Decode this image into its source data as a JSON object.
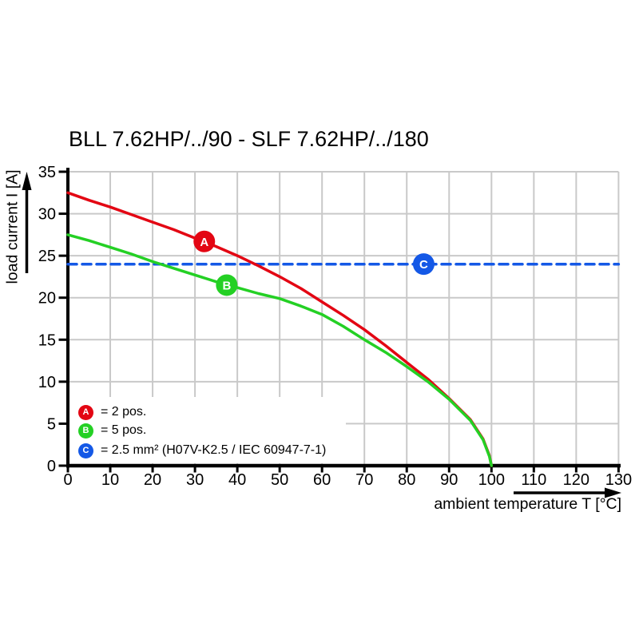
{
  "page": {
    "background": "#ffffff"
  },
  "chart_data": {
    "type": "line",
    "title": "BLL 7.62HP/../90 - SLF 7.62HP/../180",
    "x_axis": {
      "label": "ambient temperature T [°C]",
      "range": [
        0,
        130
      ],
      "ticks": [
        0,
        10,
        20,
        30,
        40,
        50,
        60,
        70,
        80,
        90,
        100,
        110,
        120,
        130
      ]
    },
    "y_axis": {
      "label": "load current I [A]",
      "range": [
        0,
        35
      ],
      "ticks": [
        0,
        5,
        10,
        15,
        20,
        25,
        30,
        35
      ]
    },
    "grid": true,
    "legend_position": "inside-bottom-left",
    "colors": {
      "axis": "#000000",
      "grid": "#c9c9c9",
      "red": "#e30613",
      "green": "#24d024",
      "blue": "#1458e6"
    },
    "series": [
      {
        "name": "A",
        "legend_label": "= 2 pos.",
        "color": "#e30613",
        "line_style": "solid",
        "points": [
          [
            0,
            32.5
          ],
          [
            5,
            31.6
          ],
          [
            10,
            30.8
          ],
          [
            15,
            29.9
          ],
          [
            20,
            29.0
          ],
          [
            25,
            28.1
          ],
          [
            30,
            27.1
          ],
          [
            35,
            26.1
          ],
          [
            40,
            25.0
          ],
          [
            45,
            23.8
          ],
          [
            50,
            22.5
          ],
          [
            55,
            21.1
          ],
          [
            60,
            19.5
          ],
          [
            65,
            17.9
          ],
          [
            70,
            16.2
          ],
          [
            75,
            14.3
          ],
          [
            80,
            12.3
          ],
          [
            85,
            10.3
          ],
          [
            90,
            8.0
          ],
          [
            95,
            5.5
          ],
          [
            98,
            3.2
          ],
          [
            99.5,
            1.2
          ],
          [
            100,
            0
          ]
        ]
      },
      {
        "name": "B",
        "legend_label": "= 5 pos.",
        "color": "#24d024",
        "line_style": "solid",
        "points": [
          [
            0,
            27.5
          ],
          [
            5,
            26.8
          ],
          [
            10,
            26.0
          ],
          [
            15,
            25.2
          ],
          [
            20,
            24.3
          ],
          [
            25,
            23.5
          ],
          [
            30,
            22.7
          ],
          [
            35,
            21.9
          ],
          [
            40,
            21.2
          ],
          [
            45,
            20.5
          ],
          [
            50,
            19.9
          ],
          [
            55,
            19.0
          ],
          [
            60,
            18.0
          ],
          [
            65,
            16.6
          ],
          [
            70,
            15.0
          ],
          [
            75,
            13.5
          ],
          [
            80,
            11.8
          ],
          [
            85,
            10.0
          ],
          [
            90,
            7.9
          ],
          [
            95,
            5.4
          ],
          [
            98,
            3.1
          ],
          [
            99.5,
            1.1
          ],
          [
            100,
            0
          ]
        ]
      },
      {
        "name": "C",
        "legend_label": "= 2.5 mm² (H07V-K2.5 / IEC 60947-7-1)",
        "color": "#1458e6",
        "line_style": "dashed",
        "points": [
          [
            0,
            24
          ],
          [
            130,
            24
          ]
        ]
      }
    ],
    "curve_markers": [
      {
        "letter": "A",
        "t": 32.2,
        "i": 26.7
      },
      {
        "letter": "B",
        "t": 37.5,
        "i": 21.5
      },
      {
        "letter": "C",
        "t": 84,
        "i": 24
      }
    ]
  }
}
